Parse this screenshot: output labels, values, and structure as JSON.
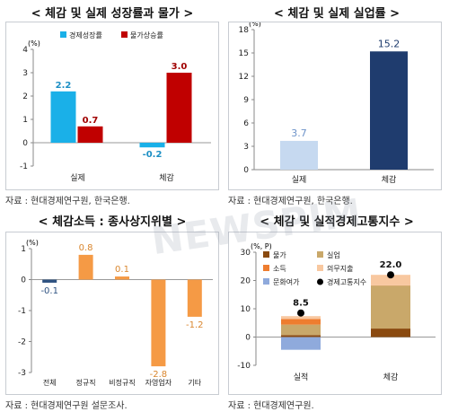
{
  "colors": {
    "cyan": "#1ab0e8",
    "red": "#c00000",
    "light_blue": "#c6d9f0",
    "navy": "#1f3c6e",
    "orange": "#f59a45",
    "dark_blue": "#2e5281",
    "brown_dark": "#8a4a10",
    "wheat": "#c9a86a",
    "orange_mid": "#ee7d2f",
    "peach": "#f8c8a0",
    "lavender": "#8faadc",
    "black": "#000000"
  },
  "watermark": "NEWSPIM",
  "panels": [
    {
      "title": "< 체감 및 실제 성장률과 물가 >",
      "source": "자료 : 현대경제연구원, 한국은행.",
      "chart_data": {
        "type": "bar",
        "unit": "(%)",
        "categories": [
          "실제",
          "체감"
        ],
        "series": [
          {
            "name": "경제성장률",
            "color": "#1ab0e8",
            "values": [
              2.2,
              -0.2
            ]
          },
          {
            "name": "물가상승률",
            "color": "#c00000",
            "values": [
              0.7,
              3.0
            ]
          }
        ],
        "value_labels": [
          [
            "2.2",
            "-0.2"
          ],
          [
            "0.7",
            "3.0"
          ]
        ],
        "ylim": [
          -1,
          4
        ],
        "yticks": [
          "-1",
          "0",
          "1",
          "2",
          "3",
          "4"
        ],
        "legend": "top"
      }
    },
    {
      "title": "< 체감 및 실제 실업률 >",
      "source": "자료 : 현대경제연구원, 한국은행.",
      "chart_data": {
        "type": "bar",
        "unit": "(%)",
        "categories": [
          "실제",
          "체감"
        ],
        "values": [
          3.7,
          15.2
        ],
        "value_labels": [
          "3.7",
          "15.2"
        ],
        "colors": [
          "#c6d9f0",
          "#1f3c6e"
        ],
        "ylim": [
          0,
          18
        ],
        "yticks": [
          "0",
          "3",
          "6",
          "9",
          "12",
          "15",
          "18"
        ]
      }
    },
    {
      "title": "< 체감소득 : 종사상지위별 >",
      "source": "자료 : 현대경제연구원 설문조사.",
      "chart_data": {
        "type": "bar",
        "unit": "(%)",
        "categories": [
          "전체",
          "정규직",
          "비정규직",
          "자영업자",
          "기타"
        ],
        "values": [
          -0.1,
          0.8,
          0.1,
          -2.8,
          -1.2
        ],
        "value_labels": [
          "-0.1",
          "0.8",
          "0.1",
          "-2.8",
          "-1.2"
        ],
        "colors": [
          "#2e5281",
          "#f59a45",
          "#f59a45",
          "#f59a45",
          "#f59a45"
        ],
        "ylim": [
          -3,
          1
        ],
        "yticks": [
          "-3",
          "-2",
          "-1",
          "0",
          "1"
        ]
      }
    },
    {
      "title": "< 체감 및 실적경제고통지수 >",
      "source": "자료 : 현대경제연구원.",
      "chart_data": {
        "type": "bar",
        "unit": "(%, P)",
        "categories": [
          "실적",
          "체감"
        ],
        "series": [
          {
            "name": "물가",
            "color": "#8a4a10",
            "values": [
              0.7,
              3.0
            ]
          },
          {
            "name": "실업",
            "color": "#c9a86a",
            "values": [
              3.7,
              15.2
            ]
          },
          {
            "name": "소득",
            "color": "#ee7d2f",
            "values": [
              2.0,
              0.1
            ]
          },
          {
            "name": "의무지출",
            "color": "#f8c8a0",
            "values": [
              1.0,
              3.7
            ]
          },
          {
            "name": "문화여가",
            "color": "#8faadc",
            "values": [
              -4.5,
              0
            ]
          }
        ],
        "index_series": {
          "name": "경제고통지수",
          "color": "#000000",
          "values": [
            8.5,
            22.0
          ]
        },
        "index_labels": [
          "8.5",
          "22.0"
        ],
        "ylim": [
          -10,
          30
        ],
        "yticks": [
          "-10",
          "0",
          "10",
          "20",
          "30"
        ],
        "legend": "top-left"
      }
    }
  ]
}
